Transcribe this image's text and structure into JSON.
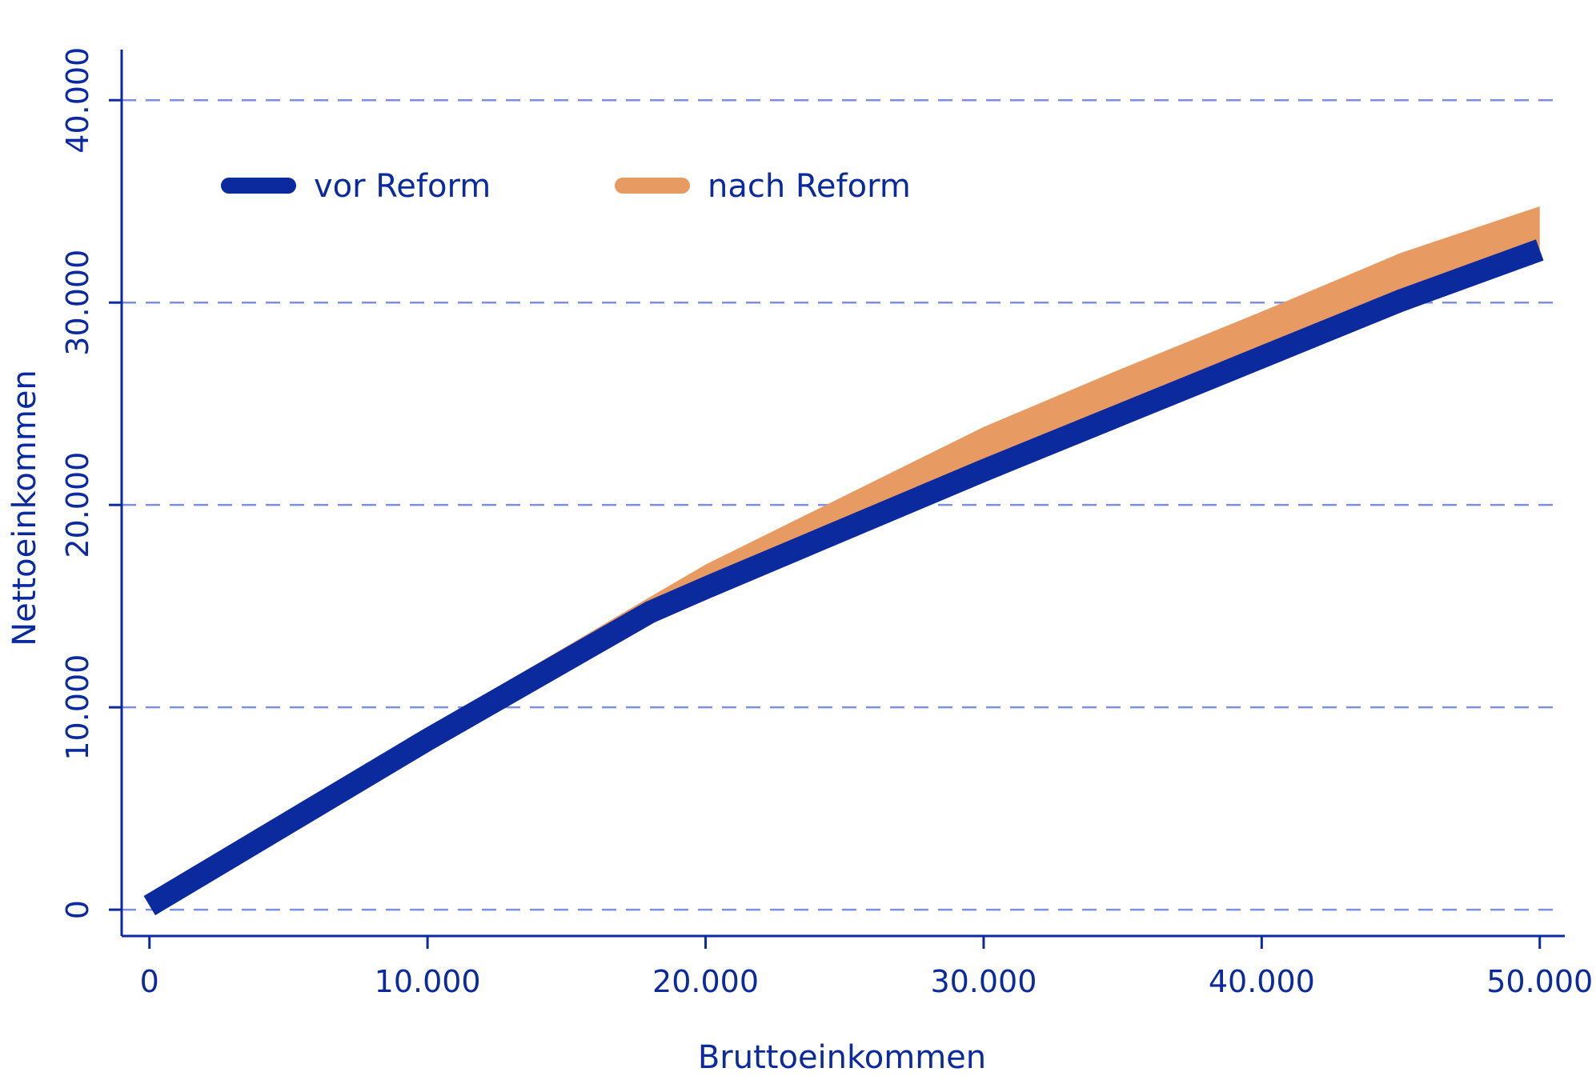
{
  "chart_data": {
    "type": "line",
    "xlabel": "Bruttoeinkommen",
    "ylabel": "Nettoeinkommen",
    "xlim": [
      -1000,
      50900
    ],
    "ylim": [
      -1300,
      42500
    ],
    "x_ticks": [
      0,
      10000,
      20000,
      30000,
      40000,
      50000
    ],
    "x_tick_labels": [
      "0",
      "10.000",
      "20.000",
      "30.000",
      "40.000",
      "50.000"
    ],
    "y_ticks": [
      0,
      10000,
      20000,
      30000,
      40000
    ],
    "y_tick_labels": [
      "0",
      "10.000",
      "20.000",
      "30.000",
      "40.000"
    ],
    "grid": true,
    "legend": "top-left",
    "colors": {
      "vor": "#0b2a9e",
      "nach": "#e89a63",
      "axis": "#0b2a9e",
      "grid": "#7f8fe0"
    },
    "series": [
      {
        "name": "vor Reform",
        "x": [
          0,
          10000,
          18000,
          20000,
          25000,
          30000,
          35000,
          40000,
          45000,
          50000
        ],
        "y": [
          200,
          8400,
          14700,
          15900,
          18800,
          21700,
          24500,
          27300,
          30100,
          32600
        ]
      },
      {
        "name": "nach Reform",
        "x": [
          0,
          10000,
          18000,
          20000,
          25000,
          30000,
          35000,
          40000,
          45000,
          50000
        ],
        "y": [
          200,
          8400,
          14900,
          16500,
          19900,
          23300,
          26200,
          29000,
          31900,
          34200
        ]
      }
    ]
  }
}
